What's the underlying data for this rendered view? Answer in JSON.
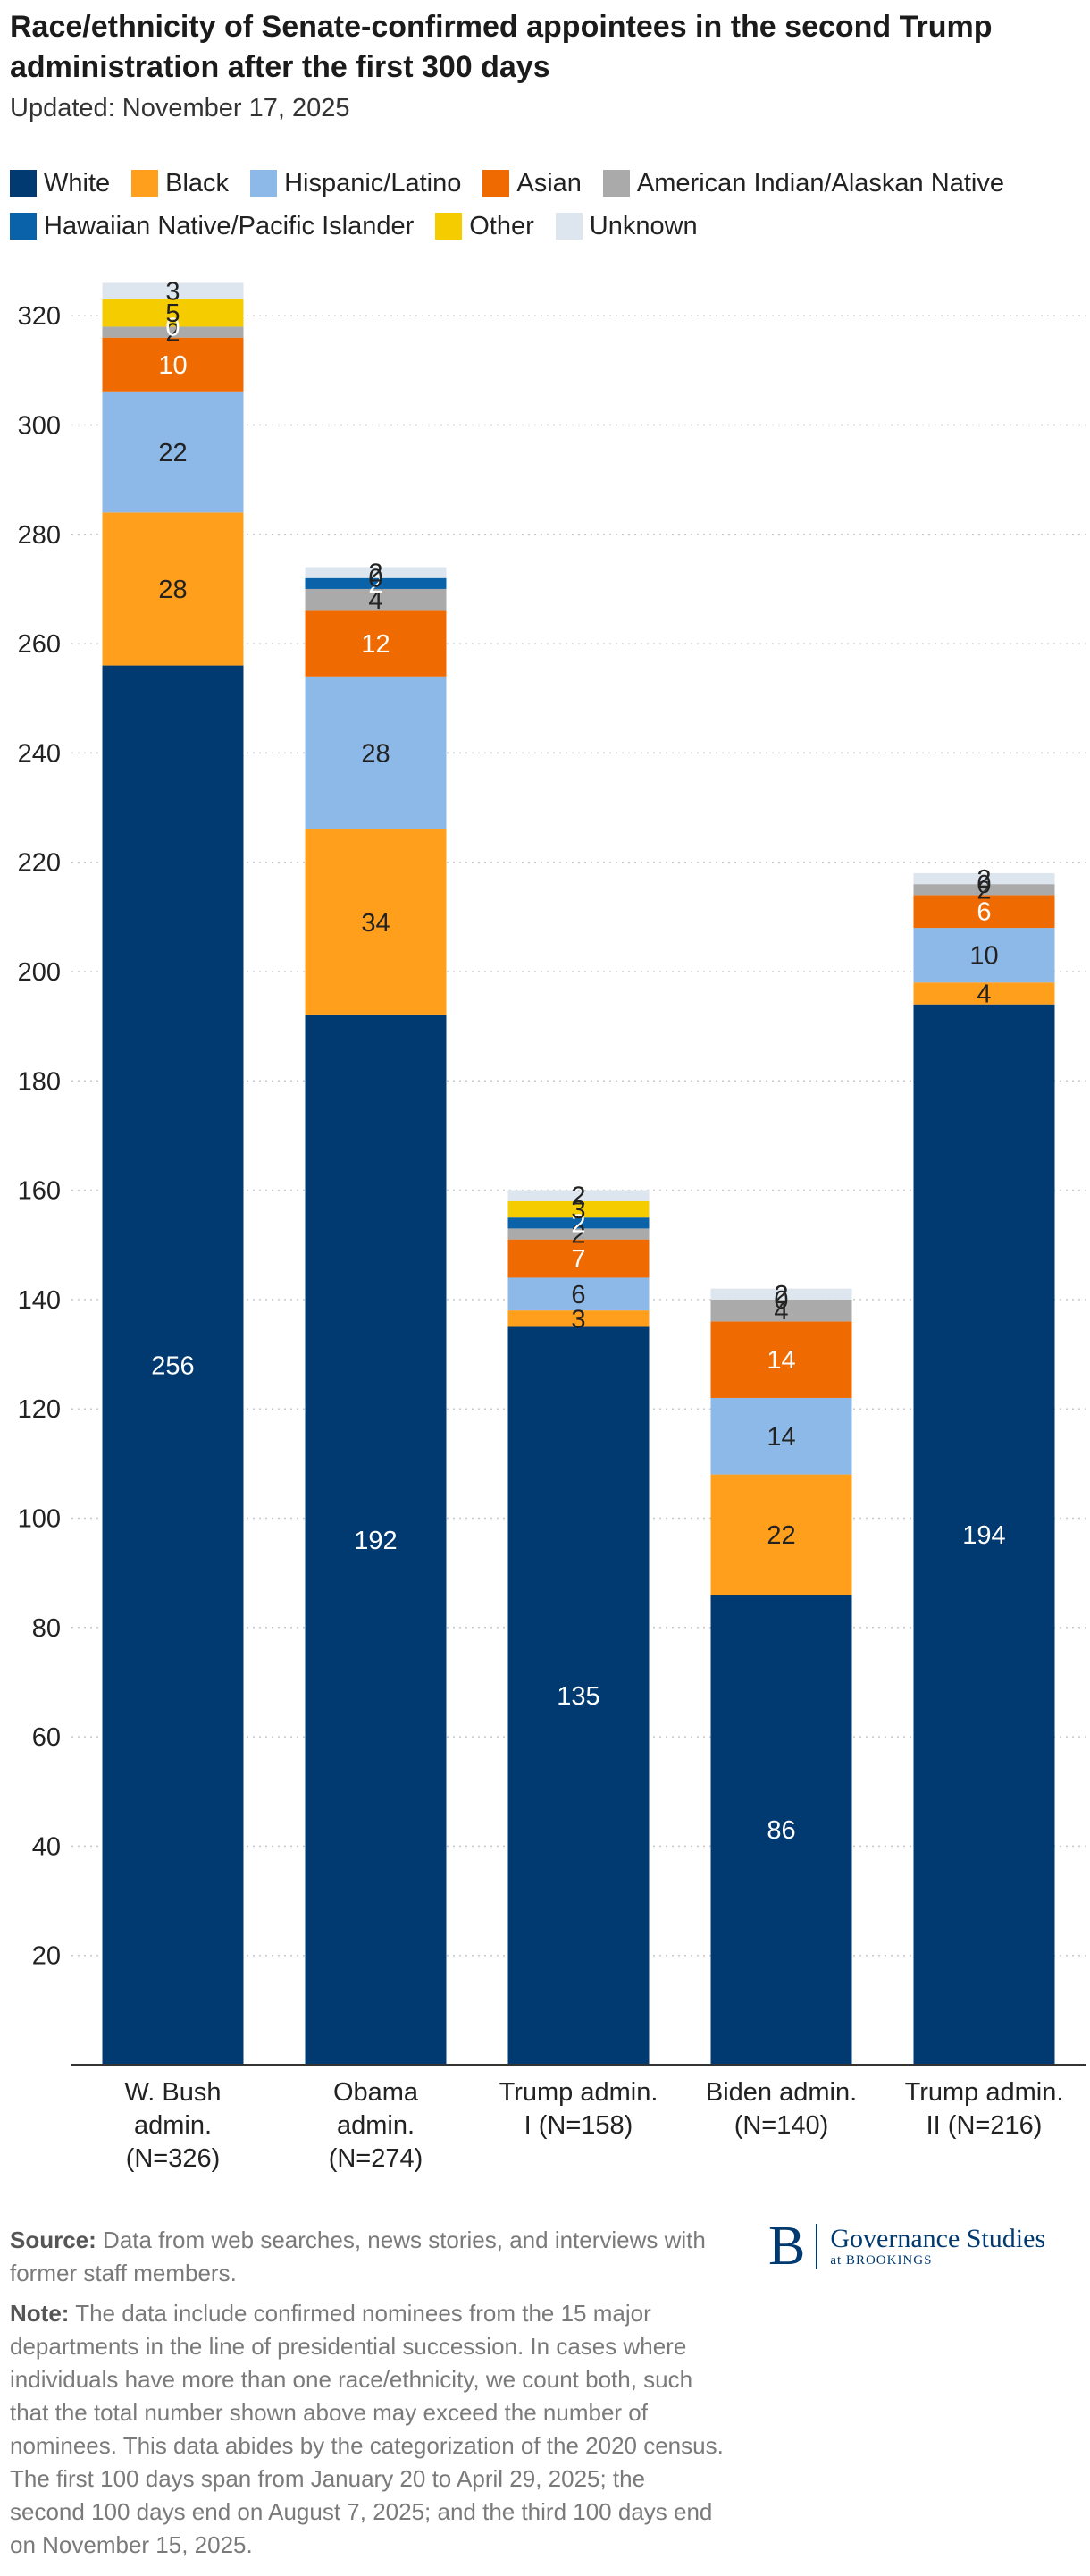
{
  "chart_data": {
    "type": "bar",
    "stacked": true,
    "title": "Race/ethnicity of Senate-confirmed appointees in the second Trump administration after the first 300 days",
    "subtitle": "Updated: November 17, 2025",
    "xlabel": "",
    "ylabel": "",
    "ylim": [
      0,
      326
    ],
    "yticks": [
      20,
      40,
      60,
      80,
      100,
      120,
      140,
      160,
      180,
      200,
      220,
      240,
      260,
      280,
      300,
      320
    ],
    "grid": true,
    "legend_position": "top",
    "categories": [
      [
        "W. Bush",
        "admin.",
        "(N=326)"
      ],
      [
        "Obama",
        "admin.",
        "(N=274)"
      ],
      [
        "Trump admin.",
        "I (N=158)"
      ],
      [
        "Biden admin.",
        "(N=140)"
      ],
      [
        "Trump admin.",
        "II (N=216)"
      ]
    ],
    "series": [
      {
        "name": "White",
        "color": "#003a70",
        "label_color": "#ffffff",
        "values": [
          256,
          192,
          135,
          86,
          194
        ]
      },
      {
        "name": "Black",
        "color": "#ff9f1c",
        "label_color": "#222222",
        "values": [
          28,
          34,
          3,
          22,
          4
        ]
      },
      {
        "name": "Hispanic/Latino",
        "color": "#8db9e8",
        "label_color": "#222222",
        "values": [
          22,
          28,
          6,
          14,
          10
        ]
      },
      {
        "name": "Asian",
        "color": "#ef6a00",
        "label_color": "#ffffff",
        "values": [
          10,
          12,
          7,
          14,
          6
        ]
      },
      {
        "name": "American Indian/Alaskan Native",
        "color": "#aaaaaa",
        "label_color": "#222222",
        "values": [
          2,
          4,
          2,
          4,
          2
        ]
      },
      {
        "name": "Hawaiian Native/Pacific Islander",
        "color": "#0a62a8",
        "label_color": "#ffffff",
        "values": [
          0,
          2,
          2,
          0,
          0
        ]
      },
      {
        "name": "Other",
        "color": "#f5cc00",
        "label_color": "#222222",
        "values": [
          5,
          0,
          3,
          0,
          0
        ]
      },
      {
        "name": "Unknown",
        "color": "#dde6ee",
        "label_color": "#222222",
        "values": [
          3,
          2,
          2,
          2,
          2
        ]
      }
    ]
  },
  "footer": {
    "source_label": "Source:",
    "source_text": " Data from web searches, news stories, and interviews with former staff members.",
    "note_label": "Note:",
    "note_text": " The data include confirmed nominees from the 15 major departments in the line of presidential succession. In cases where individuals have more than one race/ethnicity, we count both, such that the total number shown above may exceed the number of nominees. This data abides by the categorization of the 2020 census. The first 100 days span from January 20 to April 29, 2025; the second 100 days end on August 7, 2025; and the third 100 days end on November 15, 2025."
  },
  "logo": {
    "mark": "B",
    "name": "Governance Studies",
    "sub": "at BROOKINGS"
  }
}
